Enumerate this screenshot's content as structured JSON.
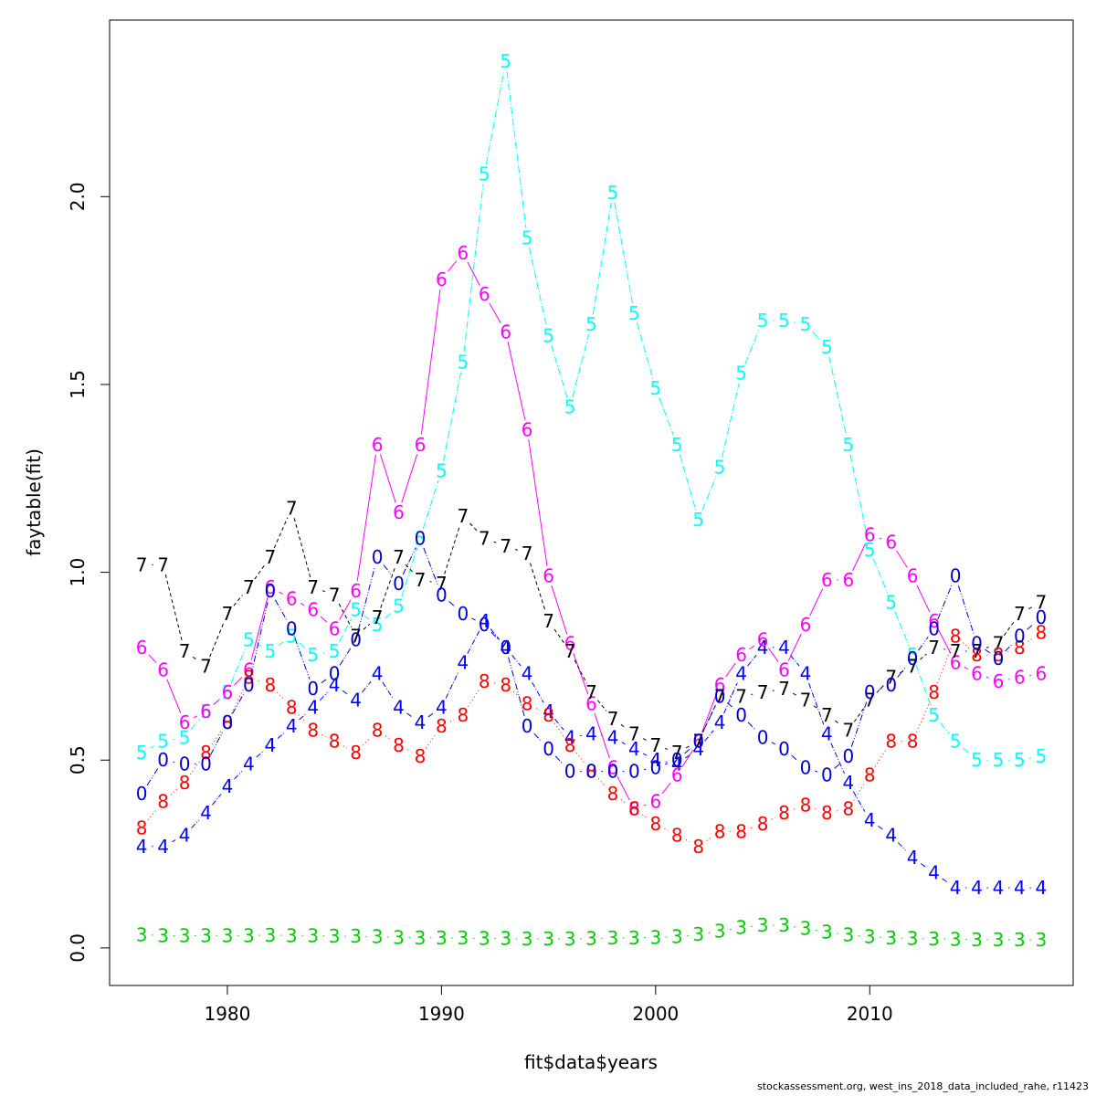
{
  "chart_data": {
    "type": "line",
    "xlabel": "fit$data$years",
    "ylabel": "faytable(fit)",
    "xlim": [
      1974.5,
      2019.5
    ],
    "ylim": [
      -0.1,
      2.47
    ],
    "x_ticks": [
      1980,
      1990,
      2000,
      2010
    ],
    "x_tick_labels": [
      "1980",
      "1990",
      "2000",
      "2010"
    ],
    "y_ticks": [
      0.0,
      0.5,
      1.0,
      1.5,
      2.0
    ],
    "y_tick_labels": [
      "0.0",
      "0.5",
      "1.0",
      "1.5",
      "2.0"
    ],
    "grid": false,
    "legend": "none",
    "x": [
      1976,
      1977,
      1978,
      1979,
      1980,
      1981,
      1982,
      1983,
      1984,
      1985,
      1986,
      1987,
      1988,
      1989,
      1990,
      1991,
      1992,
      1993,
      1994,
      1995,
      1996,
      1997,
      1998,
      1999,
      2000,
      2001,
      2002,
      2003,
      2004,
      2005,
      2006,
      2007,
      2008,
      2009,
      2010,
      2011,
      2012,
      2013,
      2014,
      2015,
      2016,
      2017,
      2018
    ],
    "series": [
      {
        "marker": "3",
        "color": "#00cd00",
        "dash": "5,3,1,3",
        "values": [
          0.035,
          0.033,
          0.032,
          0.033,
          0.033,
          0.033,
          0.034,
          0.033,
          0.033,
          0.031,
          0.031,
          0.03,
          0.028,
          0.027,
          0.027,
          0.026,
          0.025,
          0.025,
          0.024,
          0.024,
          0.024,
          0.025,
          0.026,
          0.027,
          0.028,
          0.03,
          0.036,
          0.045,
          0.054,
          0.06,
          0.06,
          0.052,
          0.042,
          0.035,
          0.03,
          0.027,
          0.025,
          0.024,
          0.023,
          0.022,
          0.022,
          0.022,
          0.021
        ]
      },
      {
        "marker": "4",
        "color": "#0000ff",
        "dash": "6,2,1,2",
        "values": [
          0.27,
          0.27,
          0.3,
          0.36,
          0.43,
          0.49,
          0.54,
          0.59,
          0.64,
          0.7,
          0.66,
          0.73,
          0.64,
          0.6,
          0.64,
          0.76,
          0.87,
          0.8,
          0.73,
          0.63,
          0.56,
          0.57,
          0.56,
          0.53,
          0.5,
          0.49,
          0.53,
          0.6,
          0.73,
          0.8,
          0.8,
          0.73,
          0.57,
          0.44,
          0.34,
          0.3,
          0.24,
          0.2,
          0.16,
          0.16,
          0.16,
          0.16,
          0.16
        ]
      },
      {
        "marker": "5",
        "color": "#00ffff",
        "dash": "8,2,1,2",
        "values": [
          0.52,
          0.55,
          0.56,
          0.63,
          0.68,
          0.82,
          0.79,
          0.83,
          0.78,
          0.79,
          0.9,
          0.86,
          0.91,
          1.09,
          1.27,
          1.56,
          2.06,
          2.36,
          1.89,
          1.63,
          1.44,
          1.66,
          2.01,
          1.69,
          1.49,
          1.34,
          1.14,
          1.28,
          1.53,
          1.67,
          1.67,
          1.66,
          1.6,
          1.34,
          1.06,
          0.92,
          0.78,
          0.62,
          0.55,
          0.5,
          0.5,
          0.5,
          0.51
        ]
      },
      {
        "marker": "6",
        "color": "#ff00ff",
        "dash": "",
        "values": [
          0.8,
          0.74,
          0.6,
          0.63,
          0.68,
          0.74,
          0.96,
          0.93,
          0.9,
          0.85,
          0.95,
          1.34,
          1.16,
          1.34,
          1.78,
          1.85,
          1.74,
          1.64,
          1.38,
          0.99,
          0.81,
          0.65,
          0.48,
          0.37,
          0.39,
          0.46,
          0.55,
          0.7,
          0.78,
          0.82,
          0.74,
          0.86,
          0.98,
          0.98,
          1.1,
          1.08,
          0.99,
          0.87,
          0.76,
          0.73,
          0.71,
          0.72,
          0.73
        ]
      },
      {
        "marker": "7",
        "color": "#000000",
        "dash": "4,3",
        "values": [
          1.02,
          1.02,
          0.79,
          0.75,
          0.89,
          0.96,
          1.04,
          1.17,
          0.96,
          0.94,
          0.83,
          0.88,
          1.04,
          0.98,
          0.97,
          1.15,
          1.09,
          1.07,
          1.05,
          0.87,
          0.79,
          0.68,
          0.61,
          0.57,
          0.54,
          0.52,
          0.55,
          0.67,
          0.67,
          0.68,
          0.69,
          0.66,
          0.62,
          0.58,
          0.66,
          0.72,
          0.75,
          0.8,
          0.79,
          0.79,
          0.81,
          0.89,
          0.92
        ]
      },
      {
        "marker": "8",
        "color": "#ff0000",
        "dash": "1,3",
        "values": [
          0.32,
          0.39,
          0.44,
          0.52,
          0.6,
          0.72,
          0.7,
          0.64,
          0.58,
          0.55,
          0.52,
          0.58,
          0.54,
          0.51,
          0.59,
          0.62,
          0.71,
          0.7,
          0.65,
          0.62,
          0.54,
          0.47,
          0.41,
          0.37,
          0.33,
          0.3,
          0.27,
          0.31,
          0.31,
          0.33,
          0.36,
          0.38,
          0.36,
          0.37,
          0.46,
          0.55,
          0.55,
          0.68,
          0.83,
          0.78,
          0.78,
          0.8,
          0.84
        ]
      },
      {
        "marker": "0",
        "color": "#0000cd",
        "dash": "7,2,1,2,1,2",
        "values": [
          0.41,
          0.5,
          0.49,
          0.49,
          0.6,
          0.7,
          0.95,
          0.85,
          0.69,
          0.73,
          0.82,
          1.04,
          0.97,
          1.09,
          0.94,
          0.89,
          0.86,
          0.8,
          0.59,
          0.53,
          0.47,
          0.47,
          0.47,
          0.47,
          0.48,
          0.5,
          0.55,
          0.67,
          0.62,
          0.56,
          0.53,
          0.48,
          0.46,
          0.51,
          0.68,
          0.7,
          0.77,
          0.85,
          0.99,
          0.81,
          0.77,
          0.83,
          0.88
        ]
      }
    ]
  },
  "footer_text": "stockassessment.org, west_ins_2018_data_included_rahe, r11423"
}
